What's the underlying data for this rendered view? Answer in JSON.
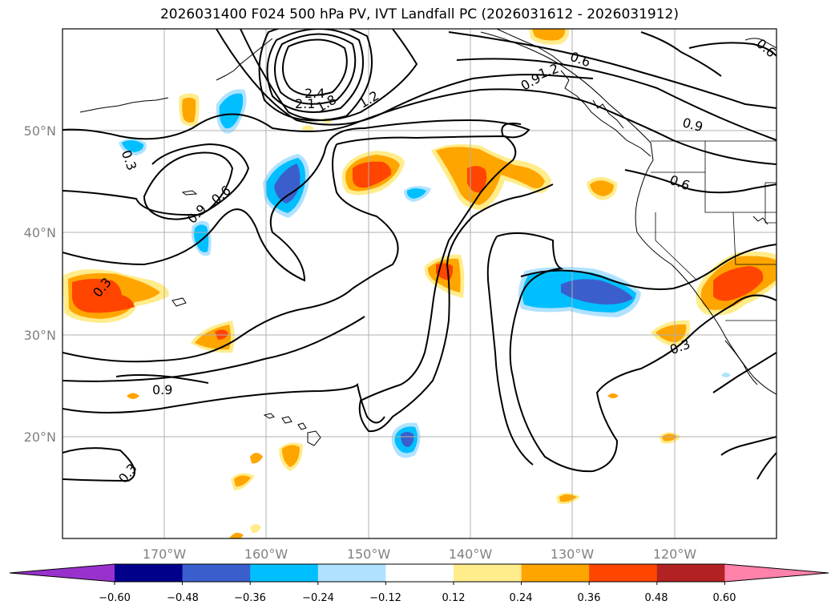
{
  "title": "2026031400 F024 500 hPa PV, IVT Landfall PC (2026031612 - 2026031912)",
  "map": {
    "lon_labels": [
      "170°W",
      "160°W",
      "150°W",
      "140°W",
      "130°W",
      "120°W"
    ],
    "lat_labels": [
      "50°N",
      "40°N",
      "30°N",
      "20°N"
    ],
    "gridlines": true,
    "line_color": "#000000",
    "grid_color": "#b0b0b0"
  },
  "contour_labels": [
    "0.3",
    "0.9",
    "0.6",
    "0.9",
    "0.6",
    "1.2",
    "1.8",
    "2.4",
    "2.1",
    "0.6",
    "1.2",
    "0.9",
    "0.6",
    "0.3",
    "0.9",
    "0.3",
    "0.3"
  ],
  "colorbar": {
    "colors": [
      "#9932cc",
      "#00008b",
      "#3a5fcd",
      "#00bfff",
      "#b0e2ff",
      "#ffffff",
      "#ffec8b",
      "#ffa500",
      "#ff4500",
      "#b22222",
      "#ff82ab"
    ],
    "labels": [
      "−0.60",
      "−0.48",
      "−0.36",
      "−0.24",
      "−0.12",
      "0.12",
      "0.24",
      "0.36",
      "0.48",
      "0.60"
    ]
  }
}
